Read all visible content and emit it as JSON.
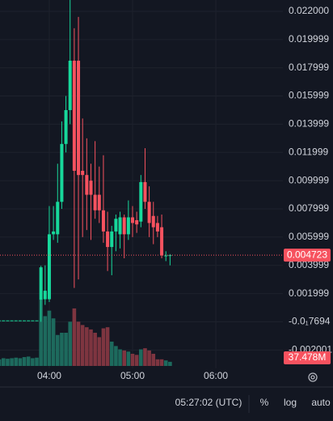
{
  "chart_data": {
    "type": "candlestick",
    "x": [
      204,
      207,
      210,
      213,
      216,
      219,
      222,
      225,
      228,
      231,
      234,
      237,
      240,
      243,
      246,
      249,
      252,
      255,
      258,
      261,
      264,
      267,
      270,
      273,
      276,
      279,
      282,
      285,
      288,
      291,
      294,
      297,
      300,
      303,
      306,
      309,
      312,
      315,
      318,
      321,
      324,
      327
    ],
    "open": [
      0.0001,
      0.0001,
      0.0001,
      0.0001,
      0.0001,
      0.0001,
      0.0001,
      0.0001,
      0.0001,
      0.0001,
      0.00157,
      0.0016,
      0.0016,
      0.0062,
      0.0062,
      0.0085,
      0.0126,
      0.015,
      0.0185,
      0.0185,
      0.0107,
      0.0104,
      0.01,
      0.009,
      0.009,
      0.0079,
      0.0064,
      0.0053,
      0.0064,
      0.0062,
      0.0074,
      0.0062,
      0.0074,
      0.0072,
      0.0071,
      0.0099,
      0.0085,
      0.0075,
      0.007,
      0.0067,
      0.0047,
      0.0047
    ],
    "high": [
      0.0001,
      0.0001,
      0.0001,
      0.0001,
      0.0001,
      0.0001,
      0.0001,
      0.0001,
      0.0001,
      0.0001,
      0.00397,
      0.004,
      0.0082,
      0.0082,
      0.0112,
      0.0142,
      0.016,
      0.0228,
      0.0208,
      0.0216,
      0.0144,
      0.013,
      0.0112,
      0.0128,
      0.011,
      0.0118,
      0.0078,
      0.0068,
      0.0076,
      0.0078,
      0.0076,
      0.0086,
      0.0082,
      0.0078,
      0.0104,
      0.0123,
      0.0096,
      0.0085,
      0.0075,
      0.0076,
      0.005,
      0.0048
    ],
    "low": [
      0.0001,
      0.0001,
      0.0001,
      0.0001,
      0.0001,
      0.0001,
      0.0001,
      0.0001,
      0.0001,
      0.0001,
      0.0,
      0.0012,
      0.0014,
      0.0058,
      0.0056,
      0.008,
      0.012,
      0.014,
      0.0024,
      0.003,
      0.006,
      0.0065,
      0.0058,
      0.0073,
      0.007,
      0.0056,
      0.0036,
      0.0033,
      0.005,
      0.0052,
      0.0045,
      0.0058,
      0.006,
      0.0063,
      0.0067,
      0.008,
      0.006,
      0.0055,
      0.006,
      0.0045,
      0.0043,
      0.004
    ],
    "close": [
      0.0001,
      0.0001,
      0.0001,
      0.0001,
      0.0001,
      0.0001,
      0.0001,
      0.0001,
      0.0001,
      0.0001,
      0.00386,
      0.0022,
      0.0062,
      0.0064,
      0.0085,
      0.0126,
      0.015,
      0.0185,
      0.0107,
      0.0104,
      0.0104,
      0.009,
      0.009,
      0.0079,
      0.0079,
      0.0064,
      0.0053,
      0.0064,
      0.0073,
      0.0074,
      0.0062,
      0.0074,
      0.007,
      0.0069,
      0.0099,
      0.0085,
      0.007,
      0.0067,
      0.0064,
      0.0047,
      0.0047,
      0.004723
    ],
    "volume": [
      60,
      70,
      65,
      70,
      75,
      70,
      80,
      85,
      70,
      75,
      600,
      450,
      500,
      430,
      280,
      300,
      300,
      400,
      520,
      400,
      370,
      350,
      330,
      300,
      260,
      340,
      350,
      220,
      180,
      150,
      140,
      130,
      110,
      100,
      150,
      160,
      140,
      110,
      60,
      60,
      50,
      37.478
    ],
    "volume_label": "37.478M",
    "last_price": 0.004723,
    "up_color": "#17d89b",
    "down_color": "#f7525f",
    "volume_up_color": "#1d6a5d",
    "volume_down_color": "#7e3540",
    "xlim": [
      204.5,
      408.3
    ],
    "xticks": [
      {
        "value": 240,
        "label": "04:00"
      },
      {
        "value": 300,
        "label": "05:00"
      },
      {
        "value": 360,
        "label": "06:00"
      }
    ],
    "ylim": [
      -0.0033,
      0.0228
    ],
    "yticks": [
      {
        "value": 0.022,
        "label": "0.022000"
      },
      {
        "value": 0.019999,
        "label": "0.019999"
      },
      {
        "value": 0.017999,
        "label": "0.017999"
      },
      {
        "value": 0.015999,
        "label": "0.015999"
      },
      {
        "value": 0.013999,
        "label": "0.013999"
      },
      {
        "value": 0.011999,
        "label": "0.011999"
      },
      {
        "value": 0.009999,
        "label": "0.009999"
      },
      {
        "value": 0.007999,
        "label": "0.007999"
      },
      {
        "value": 0.005999,
        "label": "0.005999"
      },
      {
        "value": 0.003999,
        "label": "0.003999"
      },
      {
        "value": 0.001999,
        "label": "0.001999"
      },
      {
        "value": -1.7694e-06,
        "label": "-0.0₁7694"
      },
      {
        "value": -0.002001,
        "label": "-0.002001"
      }
    ],
    "grid": true,
    "clock": "05:27:02 (UTC)",
    "toolbar": [
      "%",
      "log",
      "auto"
    ]
  }
}
